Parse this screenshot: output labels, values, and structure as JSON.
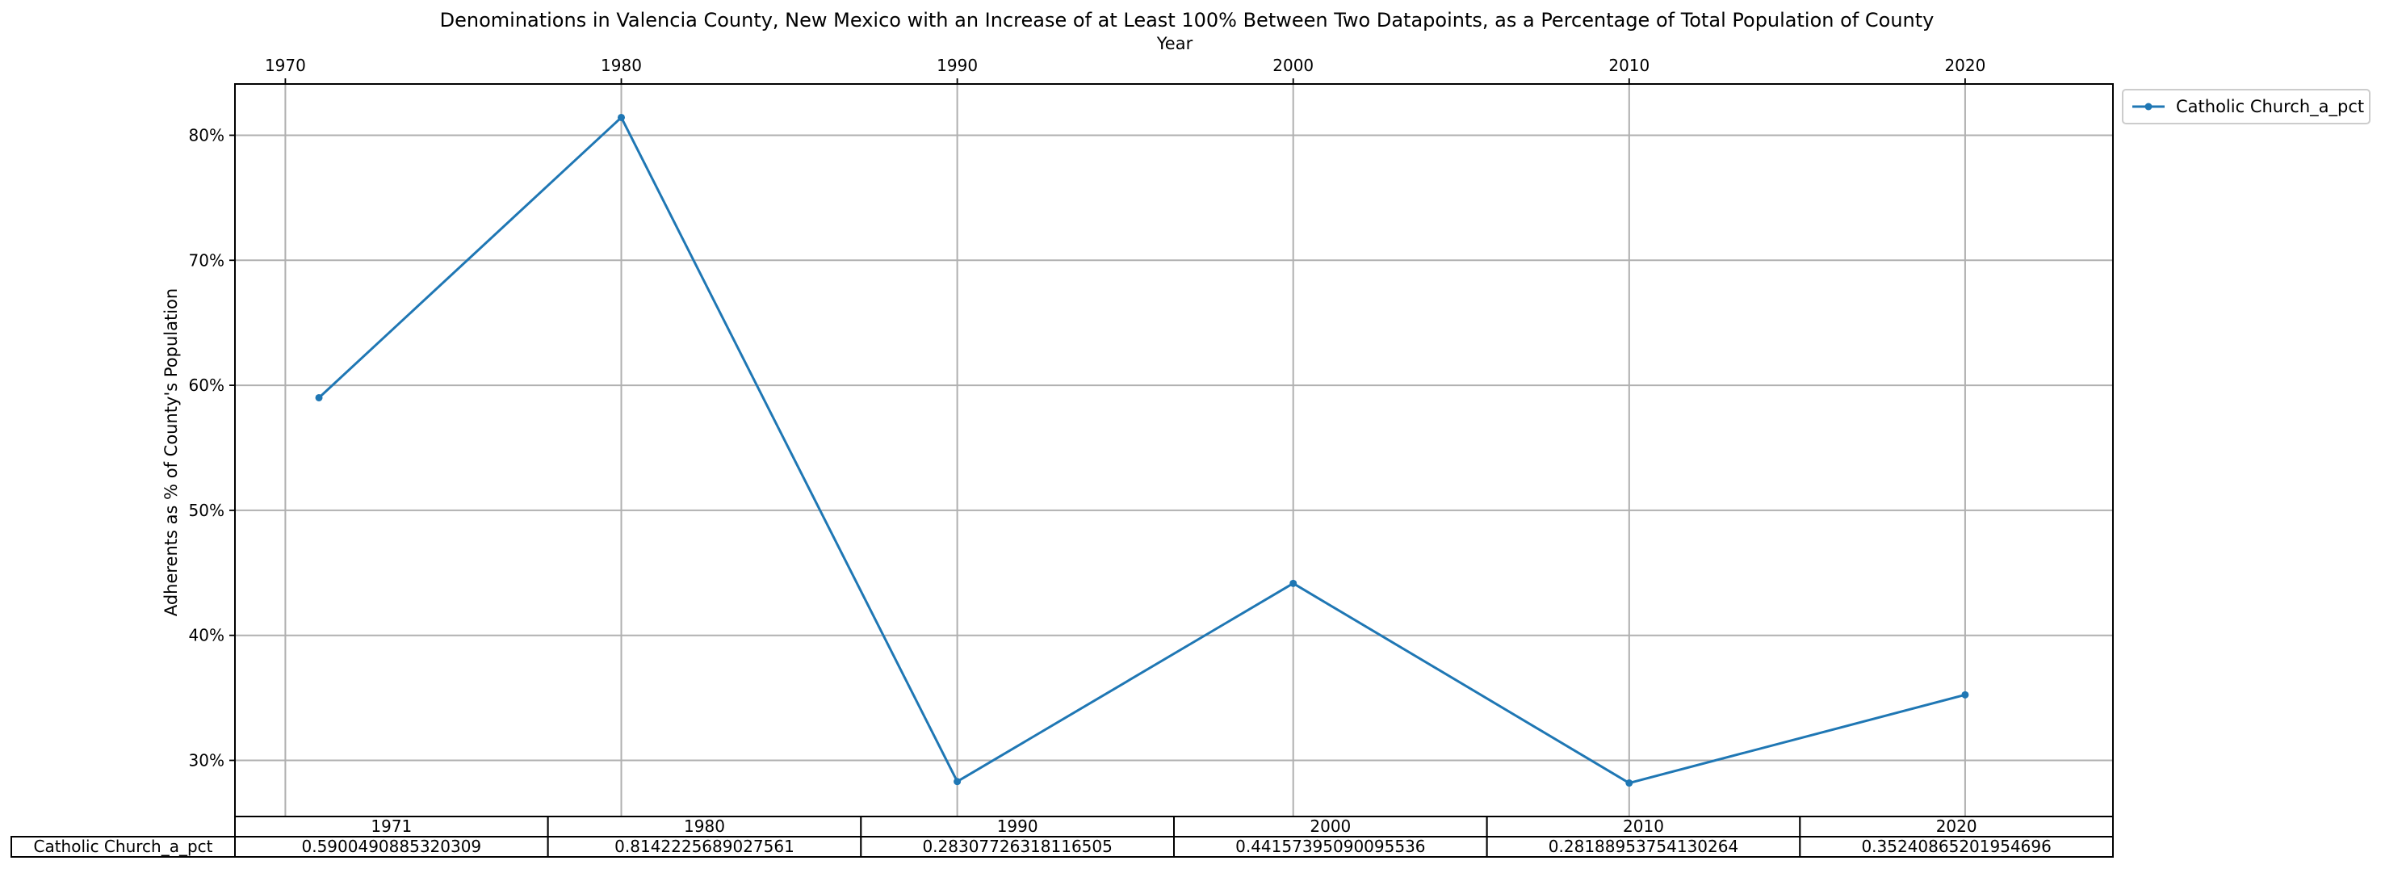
{
  "chart_data": {
    "type": "line",
    "title": "Denominations in Valencia County, New Mexico with an Increase of at Least 100% Between Two Datapoints, as a Percentage of Total Population of County",
    "xlabel": "Year",
    "ylabel": "Adherents as % of County's Population",
    "x_ticks": [
      1970,
      1980,
      1990,
      2000,
      2010,
      2020
    ],
    "x_tick_labels": [
      "1970",
      "1980",
      "1990",
      "2000",
      "2010",
      "2020"
    ],
    "y_ticks": [
      0.3,
      0.4,
      0.5,
      0.6,
      0.7,
      0.8
    ],
    "y_tick_labels": [
      "30%",
      "40%",
      "50%",
      "60%",
      "70%",
      "80%"
    ],
    "xlim": [
      1968.5,
      2024.4
    ],
    "ylim": [
      0.2551,
      0.841
    ],
    "x_axis_position": "top",
    "grid": true,
    "legend_position": "outside upper right",
    "series": [
      {
        "name": "Catholic Church_a_pct",
        "color": "#1f77b4",
        "marker": "point",
        "x": [
          1971,
          1980,
          1990,
          2000,
          2010,
          2020
        ],
        "values": [
          0.5900490885320309,
          0.8142225689027561,
          0.28307726318116505,
          0.44157395090095536,
          0.28188953754130264,
          0.35240865201954696
        ]
      }
    ],
    "table": {
      "columns": [
        "1971",
        "1980",
        "1990",
        "2000",
        "2010",
        "2020"
      ],
      "rows": [
        {
          "label": "Catholic Church_a_pct",
          "cells": [
            "0.5900490885320309",
            "0.8142225689027561",
            "0.28307726318116505",
            "0.44157395090095536",
            "0.28188953754130264",
            "0.35240865201954696"
          ]
        }
      ]
    }
  }
}
